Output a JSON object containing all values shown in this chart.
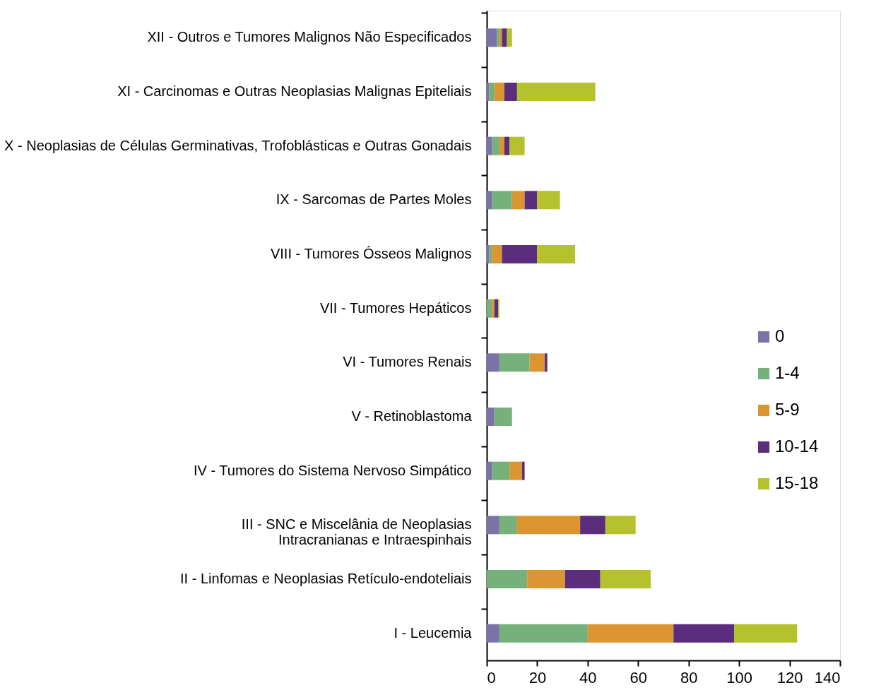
{
  "chart_data": {
    "type": "bar",
    "orientation": "horizontal",
    "stacked": true,
    "categories": [
      "XII - Outros e Tumores Malignos Não Especificados",
      "XI - Carcinomas e Outras Neoplasias Malignas Epiteliais",
      "X - Neoplasias de Células Germinativas, Trofoblásticas e Outras Gonadais",
      "IX - Sarcomas de Partes Moles",
      "VIII - Tumores Ósseos Malignos",
      "VII - Tumores Hepáticos",
      "VI - Tumores Renais",
      "V - Retinoblastoma",
      "IV - Tumores do Sistema Nervoso Simpático",
      "III - SNC e Miscelânia de Neoplasias\nIntracranianas e Intraespinhais",
      "II - Linfomas e Neoplasias Retículo-endoteliais",
      "I - Leucemia"
    ],
    "series": [
      {
        "name": "0",
        "color": "#7b73a8",
        "values": [
          4,
          1,
          2,
          2,
          1,
          0,
          5,
          3,
          2,
          5,
          0,
          5
        ]
      },
      {
        "name": "1-4",
        "color": "#76b07b",
        "values": [
          1,
          2,
          3,
          8,
          1,
          2,
          12,
          7,
          7,
          7,
          16,
          35
        ]
      },
      {
        "name": "5-9",
        "color": "#dc9631",
        "values": [
          1,
          4,
          2,
          5,
          4,
          1,
          6,
          0,
          5,
          25,
          15,
          34
        ]
      },
      {
        "name": "10-14",
        "color": "#5a2d7d",
        "values": [
          2,
          5,
          2,
          5,
          14,
          1.5,
          1,
          0,
          1,
          10,
          14,
          24
        ]
      },
      {
        "name": "15-18",
        "color": "#b5c22e",
        "values": [
          2,
          31,
          6,
          9,
          15,
          0.5,
          0,
          0,
          0,
          12,
          20,
          25
        ]
      }
    ],
    "xlim": [
      0,
      140
    ],
    "xticks": [
      0,
      20,
      40,
      60,
      80,
      100,
      120,
      140
    ],
    "grid": false,
    "legend": "right"
  }
}
